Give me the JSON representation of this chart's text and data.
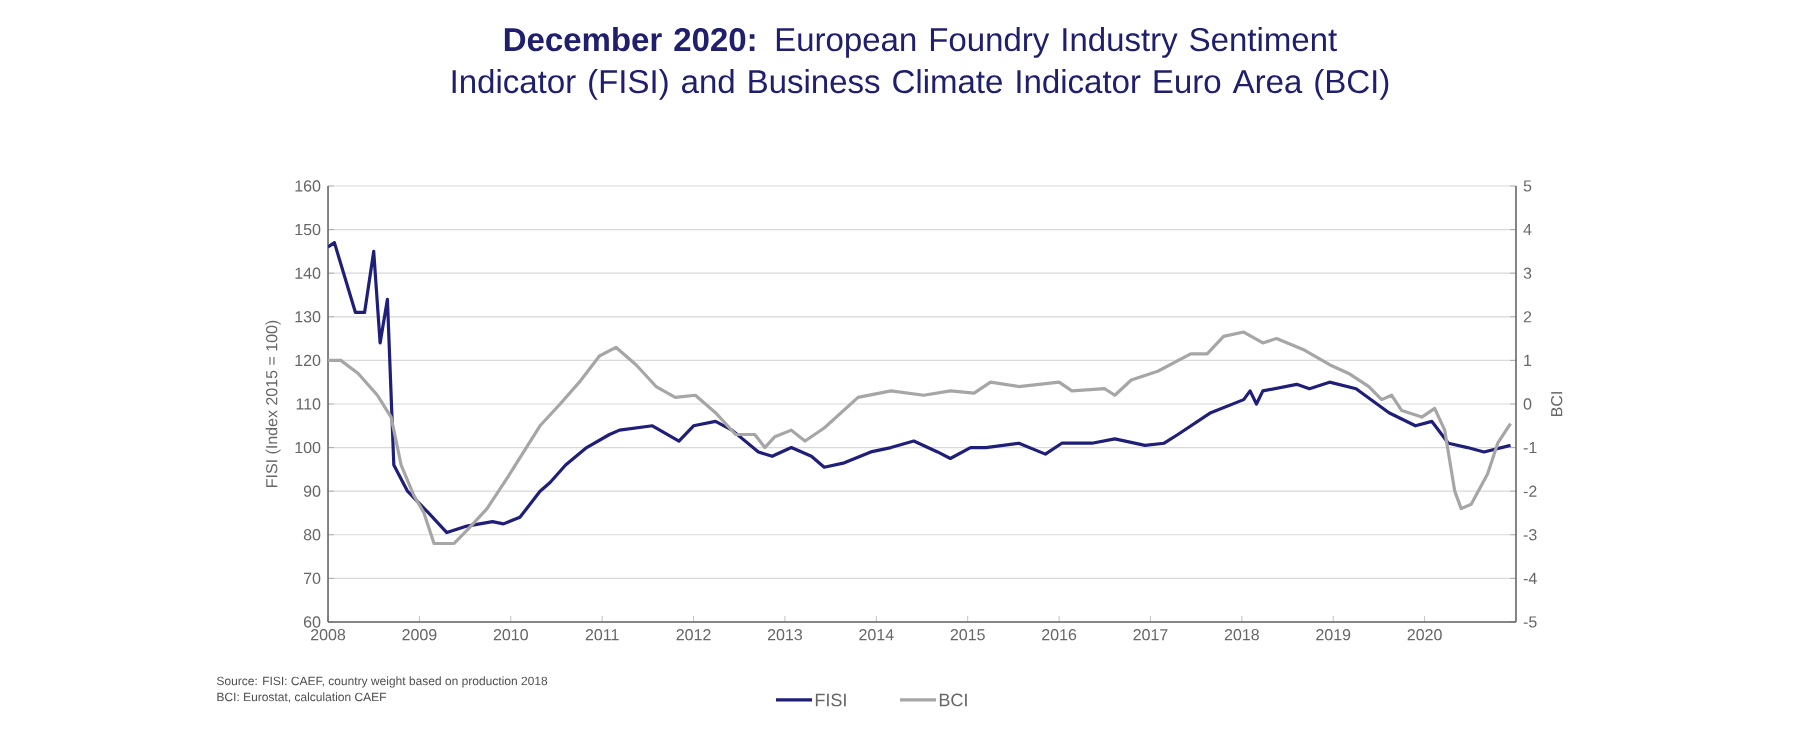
{
  "chart_data": {
    "type": "line",
    "title": "**December 2020:** European Foundry Industry Sentiment Indicator (FISI) and Business Climate Indicator Euro Area (BCI)",
    "ylabel": "FISI (Index 2015 = 100)",
    "y2label": "BCI",
    "xlim": [
      2008,
      2021
    ],
    "xticks": [
      2008,
      2009,
      2010,
      2011,
      2012,
      2013,
      2014,
      2015,
      2016,
      2017,
      2018,
      2019,
      2020
    ],
    "ylim": [
      60,
      160
    ],
    "yticks": [
      60,
      70,
      80,
      90,
      100,
      110,
      120,
      130,
      140,
      150,
      160
    ],
    "y2lim": [
      -5,
      5
    ],
    "y2ticks": [
      -5,
      -4,
      -3,
      -2,
      -1,
      0,
      1,
      2,
      3,
      4,
      5
    ],
    "grid": "y",
    "legend": "bottom",
    "annotations": [
      "Source: FISI: CAEF, country weight based on production 2018",
      "BCI: Eurostat, calculation CAEF"
    ],
    "series": [
      {
        "name": "FISI",
        "color": "#1f1f7a",
        "x": [
          2008.0,
          2008.07,
          2008.3,
          2008.4,
          2008.5,
          2008.57,
          2008.65,
          2008.72,
          2008.87,
          2009.1,
          2009.3,
          2009.52,
          2009.8,
          2009.92,
          2010.1,
          2010.32,
          2010.43,
          2010.6,
          2010.83,
          2011.08,
          2011.19,
          2011.55,
          2011.84,
          2012.0,
          2012.24,
          2012.42,
          2012.71,
          2012.86,
          2013.07,
          2013.29,
          2013.43,
          2013.65,
          2013.94,
          2014.16,
          2014.41,
          2014.67,
          2014.81,
          2015.03,
          2015.2,
          2015.56,
          2015.85,
          2016.03,
          2016.36,
          2016.61,
          2016.94,
          2017.15,
          2017.3,
          2017.66,
          2018.02,
          2018.09,
          2018.16,
          2018.23,
          2018.6,
          2018.74,
          2018.96,
          2019.25,
          2019.61,
          2019.9,
          2020.08,
          2020.26,
          2020.47,
          2020.65,
          2020.94
        ],
        "values": [
          146,
          147,
          131,
          131,
          145,
          124,
          134,
          96,
          90,
          85,
          80.5,
          82,
          83,
          82.5,
          84,
          90,
          92,
          96,
          100,
          103,
          104,
          105,
          101.5,
          105,
          106,
          104,
          99,
          98,
          100,
          98,
          95.5,
          96.5,
          99,
          100,
          101.5,
          99,
          97.5,
          100,
          100,
          101,
          98.5,
          101,
          101,
          102,
          100.5,
          101,
          103,
          108,
          111,
          113,
          110,
          113,
          114.5,
          113.5,
          115,
          113.5,
          108,
          105,
          106,
          101,
          100,
          99,
          100.5
        ]
      },
      {
        "name": "BCI",
        "color": "#a6a6a6",
        "axis": "y2",
        "x": [
          2008.0,
          2008.14,
          2008.33,
          2008.54,
          2008.69,
          2008.8,
          2008.94,
          2009.05,
          2009.16,
          2009.38,
          2009.52,
          2009.74,
          2009.96,
          2010.17,
          2010.32,
          2010.54,
          2010.75,
          2010.97,
          2011.15,
          2011.37,
          2011.59,
          2011.8,
          2012.02,
          2012.24,
          2012.46,
          2012.67,
          2012.78,
          2012.89,
          2013.07,
          2013.22,
          2013.43,
          2013.8,
          2014.16,
          2014.52,
          2014.81,
          2015.07,
          2015.25,
          2015.56,
          2016.0,
          2016.14,
          2016.5,
          2016.61,
          2016.79,
          2017.08,
          2017.44,
          2017.62,
          2017.8,
          2018.02,
          2018.23,
          2018.38,
          2018.67,
          2018.96,
          2019.17,
          2019.39,
          2019.53,
          2019.64,
          2019.75,
          2019.97,
          2020.11,
          2020.22,
          2020.33,
          2020.4,
          2020.51,
          2020.69,
          2020.8,
          2020.94
        ],
        "values": [
          1.0,
          1.0,
          0.7,
          0.2,
          -0.3,
          -1.4,
          -2.1,
          -2.5,
          -3.2,
          -3.2,
          -2.9,
          -2.4,
          -1.7,
          -1.0,
          -0.5,
          0.0,
          0.5,
          1.1,
          1.3,
          0.9,
          0.4,
          0.15,
          0.2,
          -0.2,
          -0.7,
          -0.7,
          -1.0,
          -0.75,
          -0.6,
          -0.85,
          -0.55,
          0.15,
          0.3,
          0.2,
          0.3,
          0.25,
          0.5,
          0.4,
          0.5,
          0.3,
          0.35,
          0.2,
          0.55,
          0.75,
          1.15,
          1.15,
          1.55,
          1.65,
          1.4,
          1.5,
          1.25,
          0.9,
          0.7,
          0.4,
          0.1,
          0.2,
          -0.15,
          -0.3,
          -0.1,
          -0.6,
          -2.0,
          -2.4,
          -2.3,
          -1.6,
          -0.9,
          -0.45
        ]
      }
    ]
  }
}
